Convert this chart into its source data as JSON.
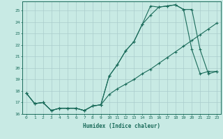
{
  "xlabel": "Humidex (Indice chaleur)",
  "x": [
    0,
    1,
    2,
    3,
    4,
    5,
    6,
    7,
    8,
    9,
    10,
    11,
    12,
    13,
    14,
    15,
    16,
    17,
    18,
    19,
    20,
    21,
    22,
    23
  ],
  "line1": [
    17.8,
    16.9,
    17.0,
    16.3,
    16.5,
    16.5,
    16.5,
    16.3,
    16.7,
    16.8,
    19.3,
    20.3,
    21.5,
    22.3,
    23.8,
    25.4,
    25.3,
    25.4,
    25.5,
    25.1,
    21.6,
    19.5,
    19.7,
    19.7
  ],
  "line2": [
    17.8,
    16.9,
    17.0,
    16.3,
    16.5,
    16.5,
    16.5,
    16.3,
    16.7,
    16.8,
    19.3,
    20.3,
    21.5,
    22.3,
    23.8,
    24.6,
    25.3,
    25.4,
    25.5,
    25.1,
    25.1,
    21.6,
    19.5,
    19.7
  ],
  "line3": [
    17.8,
    16.9,
    17.0,
    16.3,
    16.5,
    16.5,
    16.5,
    16.3,
    16.7,
    16.8,
    17.7,
    18.2,
    18.6,
    19.0,
    19.5,
    19.9,
    20.4,
    20.9,
    21.4,
    21.9,
    22.4,
    22.9,
    23.4,
    23.9
  ],
  "bg_color": "#c8eae4",
  "line_color": "#1a6b5a",
  "grid_color": "#aacccc",
  "ylim": [
    16,
    25.8
  ],
  "xlim": [
    -0.5,
    23.5
  ],
  "yticks": [
    16,
    17,
    18,
    19,
    20,
    21,
    22,
    23,
    24,
    25
  ],
  "xticks": [
    0,
    1,
    2,
    3,
    4,
    5,
    6,
    7,
    8,
    9,
    10,
    11,
    12,
    13,
    14,
    15,
    16,
    17,
    18,
    19,
    20,
    21,
    22,
    23
  ]
}
